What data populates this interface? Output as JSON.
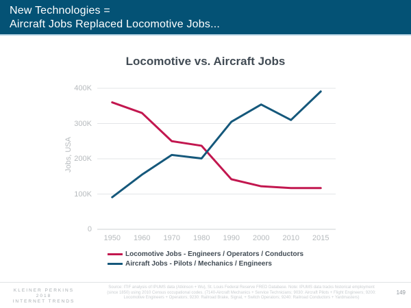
{
  "header": {
    "line1": "New Technologies =",
    "line2": "Aircraft Jobs Replaced Locomotive Jobs...",
    "bg_color": "#045275"
  },
  "chart_data": {
    "type": "line",
    "title": "Locomotive vs. Aircraft Jobs",
    "xlabel": "",
    "ylabel": "Jobs, USA",
    "categories": [
      "1950",
      "1960",
      "1970",
      "1980",
      "1990",
      "2000",
      "2010",
      "2015"
    ],
    "series": [
      {
        "name": "Locomotive Jobs - Engineers / Operators / Conductors",
        "color": "#c2174f",
        "values": [
          360000,
          330000,
          250000,
          237000,
          142000,
          122000,
          117000,
          117000
        ]
      },
      {
        "name": "Aircraft Jobs - Pilots / Mechanics / Engineers",
        "color": "#15587b",
        "values": [
          91000,
          155000,
          211000,
          201000,
          305000,
          354000,
          310000,
          391000
        ]
      }
    ],
    "yticks": [
      {
        "value": 0,
        "label": "0"
      },
      {
        "value": 100000,
        "label": "100K"
      },
      {
        "value": 200000,
        "label": "200K"
      },
      {
        "value": 300000,
        "label": "300K"
      },
      {
        "value": 400000,
        "label": "400K"
      }
    ],
    "ylim": [
      0,
      420000
    ],
    "grid": true,
    "legend_position": "bottom"
  },
  "footer": {
    "brand_line1": "KLEINER PERKINS",
    "brand_line2": "2018",
    "brand_line3": "INTERNET TRENDS",
    "source_line1": "Source: ITIF analysis of IPUMS data (Atkinson + Wu), St. Louis Federal Reserve FRED Database.  Note: IPUMS data tracks historical employment",
    "source_line2": "(since 1850) using 2010 Census occupational codes.  (7140-Aircraft Mechanics + Service Technicians; 9030: Aircraft Pilots + Flight Engineers; 9200:",
    "source_line3": "Locomotive Engineers + Operators; 9230: Railroad Brake, Signal, + Switch Operators; 9240: Railroad Conductors + Yardmasters)",
    "page_number": "149"
  }
}
